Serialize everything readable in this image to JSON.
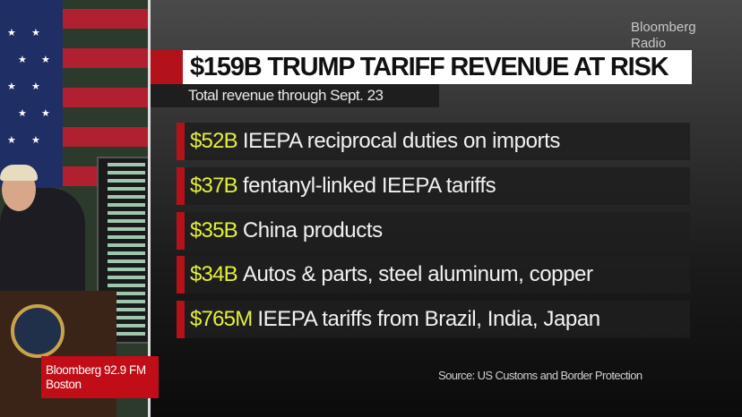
{
  "watermark": {
    "line1": "Bloomberg",
    "line2": "Radio"
  },
  "graphic": {
    "title": "$159B TRUMP TARIFF REVENUE AT RISK",
    "subtitle": "Total revenue through Sept. 23",
    "rows": [
      {
        "amount": "$52B",
        "description": "IEEPA reciprocal duties on imports"
      },
      {
        "amount": "$37B",
        "description": "fentanyl-linked IEEPA tariffs"
      },
      {
        "amount": "$35B",
        "description": "China products"
      },
      {
        "amount": "$34B",
        "description": "Autos & parts, steel aluminum, copper"
      },
      {
        "amount": "$765M",
        "description": "IEEPA tariffs from Brazil, India, Japan"
      }
    ],
    "source": "Source: US Customs and Border Protection"
  },
  "station": {
    "line1": "Bloomberg 92.9 FM",
    "line2": "Boston"
  },
  "colors": {
    "accent_red": "#b3121b",
    "amount_yellow": "#e3ef3a",
    "station_red": "#c10d17"
  }
}
